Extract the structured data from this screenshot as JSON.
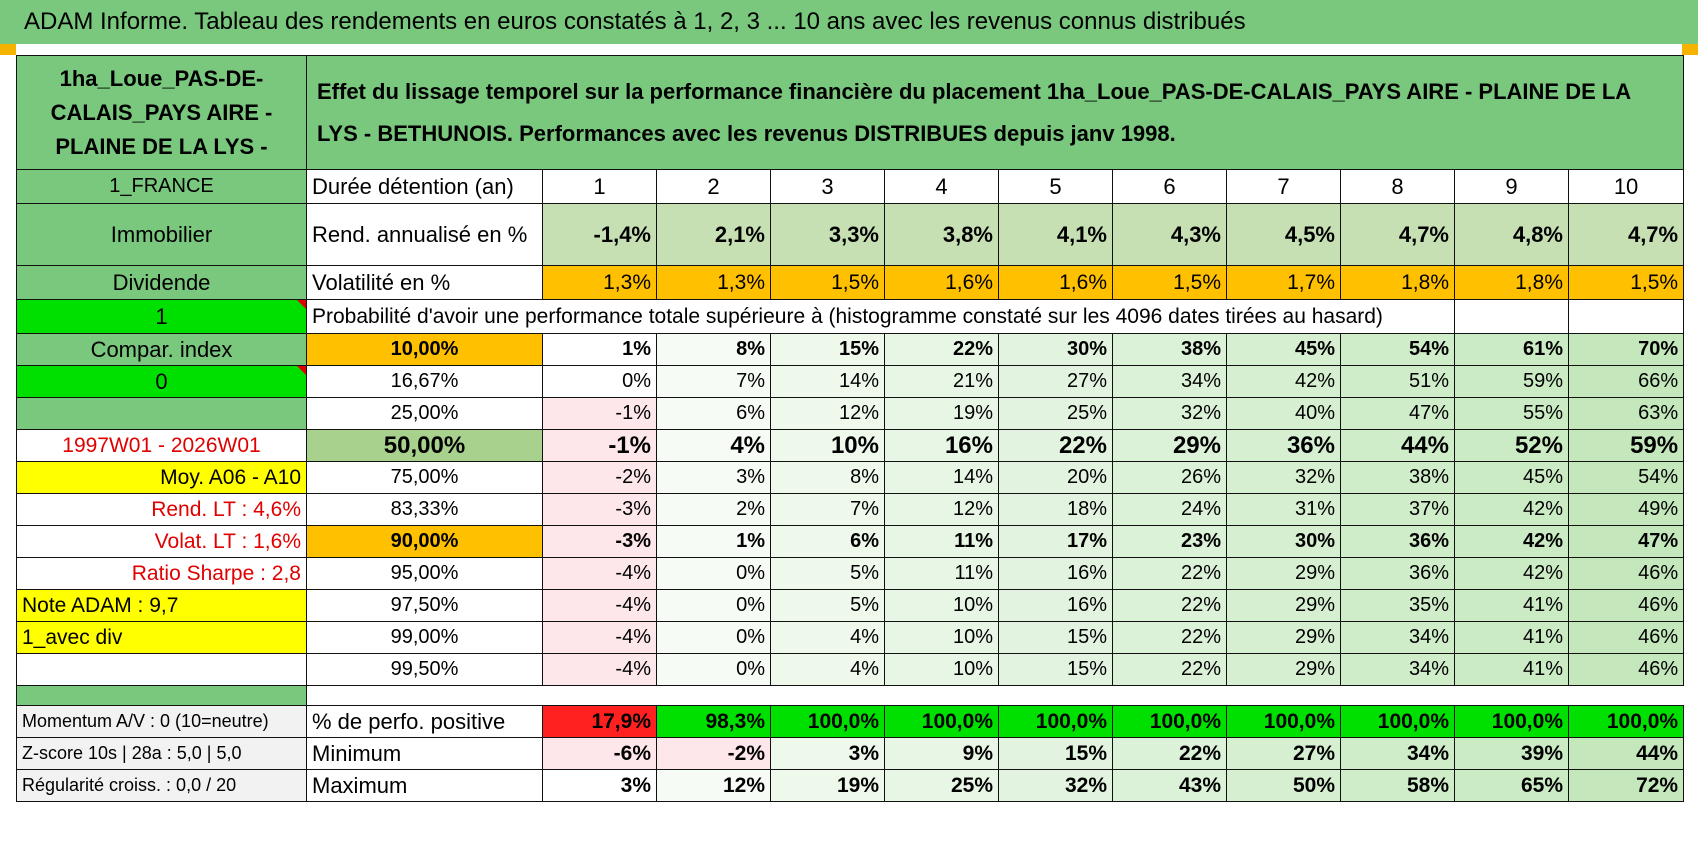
{
  "title": "ADAM Informe. Tableau des rendements en euros constatés à 1, 2, 3 ... 10 ans avec les revenus connus distribués",
  "left": {
    "asset_name": "1ha_Loue_PAS-DE-CALAIS_PAYS AIRE - PLAINE DE LA LYS -",
    "country": "1_FRANCE",
    "category": "Immobilier",
    "income_type": "Dividende",
    "selector_value": "1",
    "compar_index": "Compar. index",
    "compar_value": "0",
    "period": "1997W01 - 2026W01",
    "moy": "Moy. A06 - A10",
    "rend_lt": "Rend. LT :   4,6%",
    "volat_lt": "Volat. LT :   1,6%",
    "sharpe": "Ratio Sharpe :    2,8",
    "note": "Note ADAM : 9,7",
    "div_mode": "1_avec div",
    "momentum": "Momentum A/V : 0 (10=neutre)",
    "zscore": "Z-score 10s | 28a : 5,0 | 5,0",
    "regularite": "Régularité croiss. : 0,0 / 20"
  },
  "header_text": "Effet du lissage temporel sur la performance financière du placement 1ha_Loue_PAS-DE-CALAIS_PAYS AIRE - PLAINE DE LA LYS - BETHUNOIS. Performances avec les revenus DISTRIBUES depuis janv 1998.",
  "duration_label": "Durée détention (an)",
  "years": [
    "1",
    "2",
    "3",
    "4",
    "5",
    "6",
    "7",
    "8",
    "9",
    "10"
  ],
  "rend_label": "Rend. annualisé en %",
  "rend": [
    "-1,4%",
    "2,1%",
    "3,3%",
    "3,8%",
    "4,1%",
    "4,3%",
    "4,5%",
    "4,7%",
    "4,8%",
    "4,7%"
  ],
  "vol_label": "Volatilité en %",
  "vol": [
    "1,3%",
    "1,3%",
    "1,5%",
    "1,6%",
    "1,6%",
    "1,5%",
    "1,7%",
    "1,8%",
    "1,8%",
    "1,5%"
  ],
  "prob_label": "Probabilité d'avoir une performance totale supérieure à (histogramme constaté sur les 4096 dates tirées au hasard)",
  "percentiles": [
    {
      "p": "10,00%",
      "vals": [
        "1%",
        "8%",
        "15%",
        "22%",
        "30%",
        "38%",
        "45%",
        "54%",
        "61%",
        "70%"
      ]
    },
    {
      "p": "16,67%",
      "vals": [
        "0%",
        "7%",
        "14%",
        "21%",
        "27%",
        "34%",
        "42%",
        "51%",
        "59%",
        "66%"
      ]
    },
    {
      "p": "25,00%",
      "vals": [
        "-1%",
        "6%",
        "12%",
        "19%",
        "25%",
        "32%",
        "40%",
        "47%",
        "55%",
        "63%"
      ]
    },
    {
      "p": "50,00%",
      "vals": [
        "-1%",
        "4%",
        "10%",
        "16%",
        "22%",
        "29%",
        "36%",
        "44%",
        "52%",
        "59%"
      ]
    },
    {
      "p": "75,00%",
      "vals": [
        "-2%",
        "3%",
        "8%",
        "14%",
        "20%",
        "26%",
        "32%",
        "38%",
        "45%",
        "54%"
      ]
    },
    {
      "p": "83,33%",
      "vals": [
        "-3%",
        "2%",
        "7%",
        "12%",
        "18%",
        "24%",
        "31%",
        "37%",
        "42%",
        "49%"
      ]
    },
    {
      "p": "90,00%",
      "vals": [
        "-3%",
        "1%",
        "6%",
        "11%",
        "17%",
        "23%",
        "30%",
        "36%",
        "42%",
        "47%"
      ]
    },
    {
      "p": "95,00%",
      "vals": [
        "-4%",
        "0%",
        "5%",
        "11%",
        "16%",
        "22%",
        "29%",
        "36%",
        "42%",
        "46%"
      ]
    },
    {
      "p": "97,50%",
      "vals": [
        "-4%",
        "0%",
        "5%",
        "10%",
        "16%",
        "22%",
        "29%",
        "35%",
        "41%",
        "46%"
      ]
    },
    {
      "p": "99,00%",
      "vals": [
        "-4%",
        "0%",
        "4%",
        "10%",
        "15%",
        "22%",
        "29%",
        "34%",
        "41%",
        "46%"
      ]
    },
    {
      "p": "99,50%",
      "vals": [
        "-4%",
        "0%",
        "4%",
        "10%",
        "15%",
        "22%",
        "29%",
        "34%",
        "41%",
        "46%"
      ]
    }
  ],
  "pos_label": "% de perfo. positive",
  "pos": [
    "17,9%",
    "98,3%",
    "100,0%",
    "100,0%",
    "100,0%",
    "100,0%",
    "100,0%",
    "100,0%",
    "100,0%",
    "100,0%"
  ],
  "min_label": "Minimum",
  "min": [
    "-6%",
    "-2%",
    "3%",
    "9%",
    "15%",
    "22%",
    "27%",
    "34%",
    "39%",
    "44%"
  ],
  "max_label": "Maximum",
  "max": [
    "3%",
    "12%",
    "19%",
    "25%",
    "32%",
    "43%",
    "50%",
    "58%",
    "65%",
    "72%"
  ],
  "colors": {
    "title_green": "#7ac77e",
    "bright_green": "#00e000",
    "yellow": "#ffff00",
    "orange": "#ffc000",
    "red": "#ff2020",
    "label_red": "#e00000"
  }
}
